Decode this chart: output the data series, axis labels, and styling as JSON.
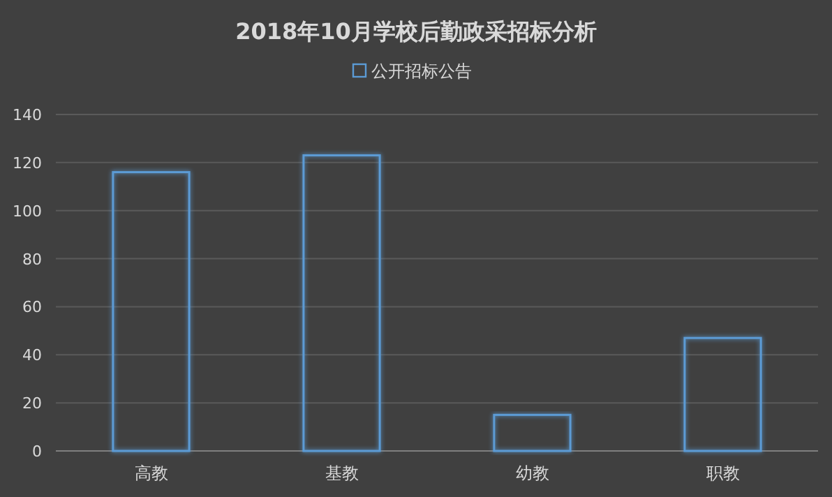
{
  "chart_data": {
    "type": "bar",
    "title": "2018年10月学校后勤政采招标分析",
    "categories": [
      "高教",
      "基教",
      "幼教",
      "职教"
    ],
    "series": [
      {
        "name": "公开招标公告",
        "color": "#5b9bd5",
        "values": [
          116,
          123,
          15,
          47
        ]
      }
    ],
    "ylim": [
      0,
      140
    ],
    "yticks": [
      0,
      20,
      40,
      60,
      80,
      100,
      120,
      140
    ],
    "grid": "y",
    "legend": "top"
  }
}
